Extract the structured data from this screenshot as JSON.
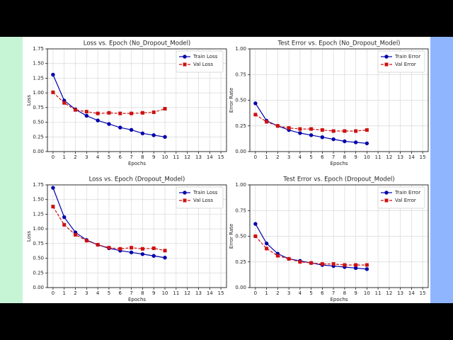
{
  "chart_data": [
    {
      "type": "line",
      "title": "Loss vs. Epoch (No_Dropout_Model)",
      "xlabel": "Epochs",
      "ylabel": "Loss",
      "grid": true,
      "legend": "upper right",
      "x": [
        0,
        1,
        2,
        3,
        4,
        5,
        6,
        7,
        8,
        9,
        10
      ],
      "xlim": [
        -0.5,
        15.5
      ],
      "xticks": [
        0,
        1,
        2,
        3,
        4,
        5,
        6,
        7,
        8,
        9,
        10,
        11,
        12,
        13,
        14,
        15
      ],
      "ylim": [
        0,
        1.75
      ],
      "yticks": [
        {
          "value": 0,
          "label": "0.00"
        },
        {
          "value": 0.25,
          "label": "0.25"
        },
        {
          "value": 0.5,
          "label": "0.50"
        },
        {
          "value": 0.75,
          "label": "0.75"
        },
        {
          "value": 1,
          "label": "1.00"
        },
        {
          "value": 1.25,
          "label": "1.25"
        },
        {
          "value": 1.5,
          "label": "1.50"
        },
        {
          "value": 1.75,
          "label": "1.75"
        }
      ],
      "series": [
        {
          "name": "Train Loss",
          "color": "#0000aa",
          "linestyle": "solid",
          "marker": "o",
          "values": [
            1.31,
            0.87,
            0.72,
            0.61,
            0.53,
            0.47,
            0.41,
            0.37,
            0.31,
            0.28,
            0.25
          ]
        },
        {
          "name": "Val Loss",
          "color": "#cc1111",
          "linestyle": "dashed",
          "marker": "s",
          "values": [
            1.01,
            0.83,
            0.71,
            0.68,
            0.65,
            0.66,
            0.65,
            0.65,
            0.66,
            0.67,
            0.73
          ]
        }
      ]
    },
    {
      "type": "line",
      "title": "Test Error vs. Epoch (No_Dropout_Model)",
      "xlabel": "Epochs",
      "ylabel": "Error Rate",
      "grid": true,
      "legend": "upper right",
      "x": [
        0,
        1,
        2,
        3,
        4,
        5,
        6,
        7,
        8,
        9,
        10
      ],
      "xlim": [
        -0.5,
        15.5
      ],
      "xticks": [
        0,
        1,
        2,
        3,
        4,
        5,
        6,
        7,
        8,
        9,
        10,
        11,
        12,
        13,
        14,
        15
      ],
      "ylim": [
        0,
        1
      ],
      "yticks": [
        {
          "value": 0,
          "label": "0.00"
        },
        {
          "value": 0.25,
          "label": "0.25"
        },
        {
          "value": 0.5,
          "label": "0.50"
        },
        {
          "value": 0.75,
          "label": "0.75"
        },
        {
          "value": 1,
          "label": "1.00"
        }
      ],
      "series": [
        {
          "name": "Train Error",
          "color": "#0000aa",
          "linestyle": "solid",
          "marker": "o",
          "values": [
            0.47,
            0.3,
            0.25,
            0.21,
            0.18,
            0.16,
            0.14,
            0.12,
            0.1,
            0.09,
            0.08
          ]
        },
        {
          "name": "Val Error",
          "color": "#cc1111",
          "linestyle": "dashed",
          "marker": "s",
          "values": [
            0.36,
            0.29,
            0.25,
            0.23,
            0.22,
            0.22,
            0.21,
            0.2,
            0.2,
            0.2,
            0.21
          ]
        }
      ]
    },
    {
      "type": "line",
      "title": "Loss vs. Epoch (Dropout_Model)",
      "xlabel": "Epochs",
      "ylabel": "Loss",
      "grid": true,
      "legend": "upper right",
      "x": [
        0,
        1,
        2,
        3,
        4,
        5,
        6,
        7,
        8,
        9,
        10
      ],
      "xlim": [
        -0.5,
        15.5
      ],
      "xticks": [
        0,
        1,
        2,
        3,
        4,
        5,
        6,
        7,
        8,
        9,
        10,
        11,
        12,
        13,
        14,
        15
      ],
      "ylim": [
        0,
        1.75
      ],
      "yticks": [
        {
          "value": 0,
          "label": "0.00"
        },
        {
          "value": 0.25,
          "label": "0.25"
        },
        {
          "value": 0.5,
          "label": "0.50"
        },
        {
          "value": 0.75,
          "label": "0.75"
        },
        {
          "value": 1,
          "label": "1.00"
        },
        {
          "value": 1.25,
          "label": "1.25"
        },
        {
          "value": 1.5,
          "label": "1.50"
        },
        {
          "value": 1.75,
          "label": "1.75"
        }
      ],
      "series": [
        {
          "name": "Train Loss",
          "color": "#0000aa",
          "linestyle": "solid",
          "marker": "o",
          "values": [
            1.7,
            1.2,
            0.94,
            0.81,
            0.73,
            0.67,
            0.63,
            0.6,
            0.57,
            0.54,
            0.51
          ]
        },
        {
          "name": "Val Loss",
          "color": "#cc1111",
          "linestyle": "dashed",
          "marker": "s",
          "values": [
            1.38,
            1.07,
            0.9,
            0.8,
            0.73,
            0.68,
            0.66,
            0.68,
            0.66,
            0.67,
            0.63
          ]
        }
      ]
    },
    {
      "type": "line",
      "title": "Test Error vs. Epoch (Dropout_Model)",
      "xlabel": "Epochs",
      "ylabel": "Error Rate",
      "grid": true,
      "legend": "upper right",
      "x": [
        0,
        1,
        2,
        3,
        4,
        5,
        6,
        7,
        8,
        9,
        10
      ],
      "xlim": [
        -0.5,
        15.5
      ],
      "xticks": [
        0,
        1,
        2,
        3,
        4,
        5,
        6,
        7,
        8,
        9,
        10,
        11,
        12,
        13,
        14,
        15
      ],
      "ylim": [
        0,
        1
      ],
      "yticks": [
        {
          "value": 0,
          "label": "0.00"
        },
        {
          "value": 0.25,
          "label": "0.25"
        },
        {
          "value": 0.5,
          "label": "0.50"
        },
        {
          "value": 0.75,
          "label": "0.75"
        },
        {
          "value": 1,
          "label": "1.00"
        }
      ],
      "series": [
        {
          "name": "Train Error",
          "color": "#0000aa",
          "linestyle": "solid",
          "marker": "o",
          "values": [
            0.62,
            0.43,
            0.33,
            0.28,
            0.26,
            0.24,
            0.22,
            0.21,
            0.2,
            0.19,
            0.18
          ]
        },
        {
          "name": "Val Error",
          "color": "#cc1111",
          "linestyle": "dashed",
          "marker": "s",
          "values": [
            0.5,
            0.38,
            0.31,
            0.28,
            0.25,
            0.24,
            0.23,
            0.23,
            0.22,
            0.22,
            0.22
          ]
        }
      ]
    }
  ]
}
